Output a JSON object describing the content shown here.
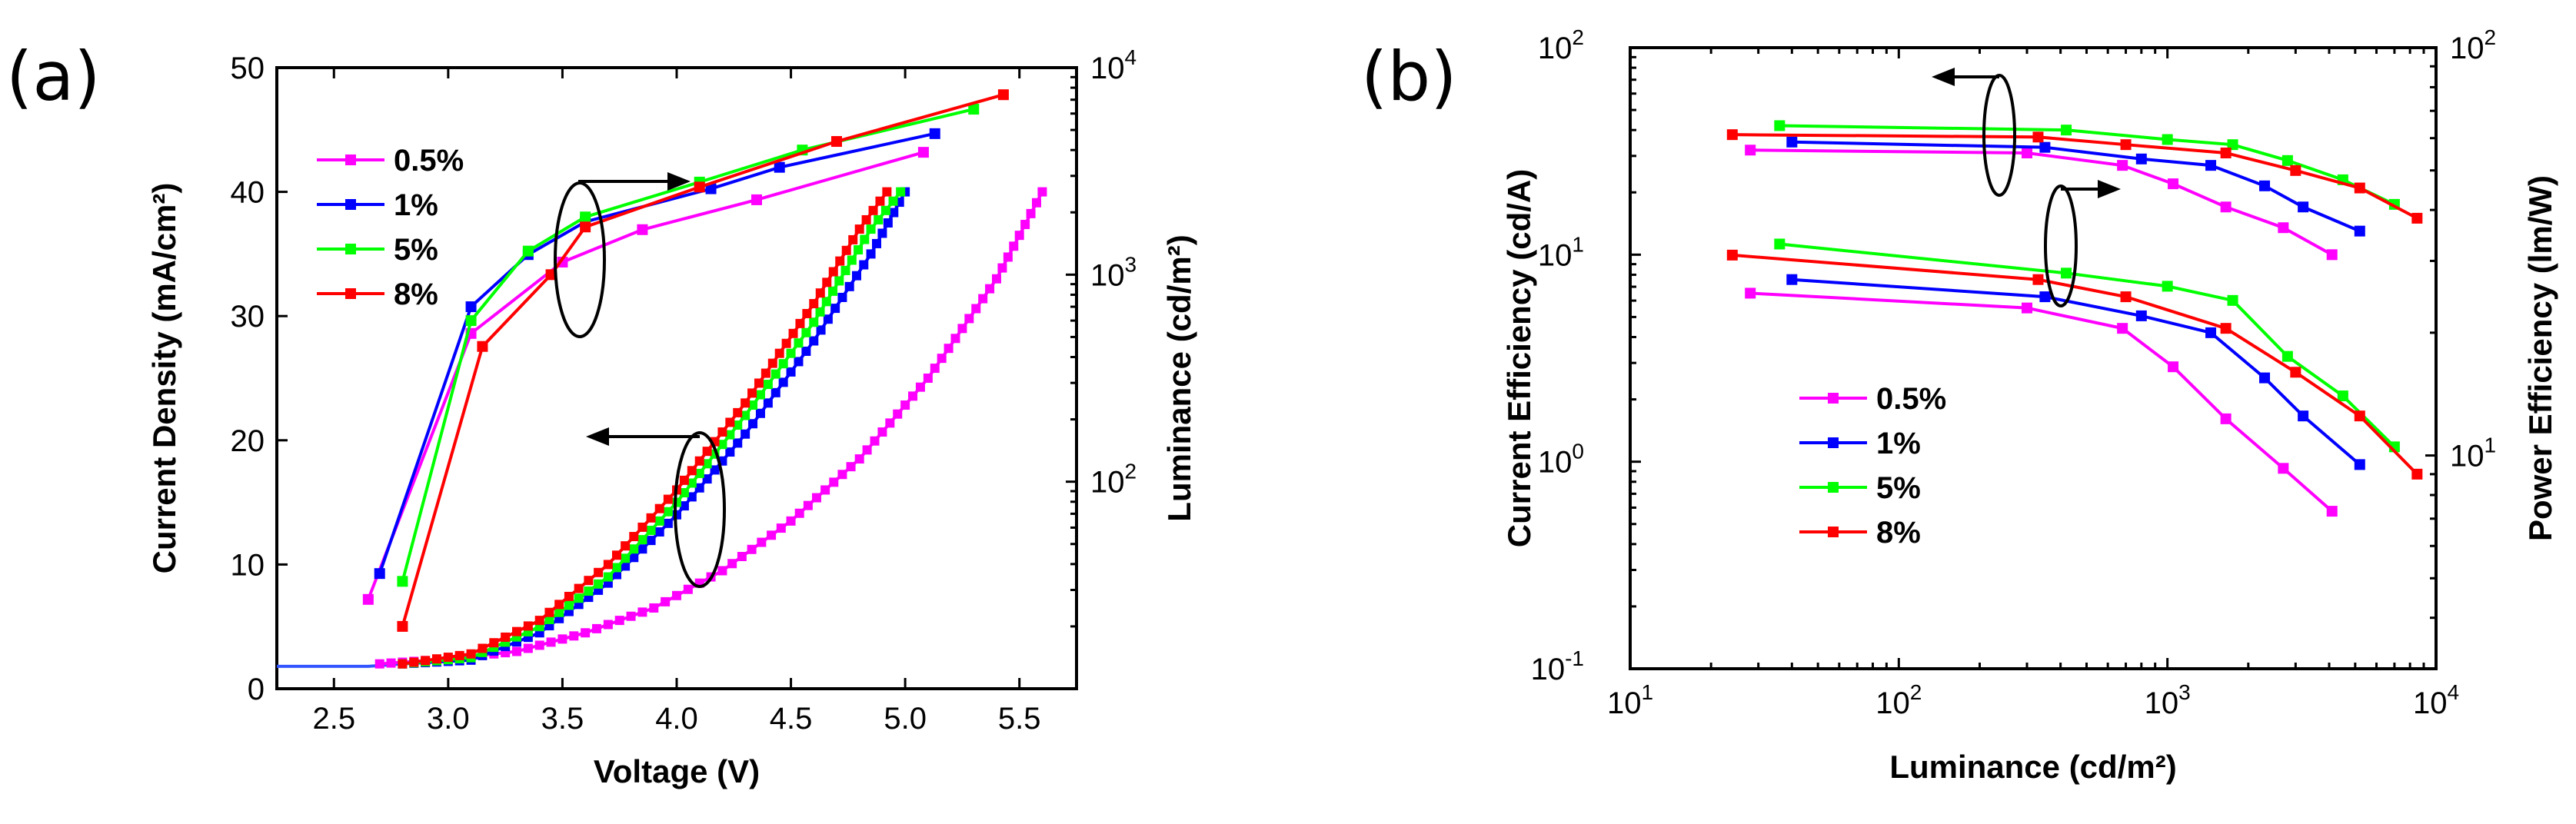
{
  "colors": {
    "0.5%": "#ff00ff",
    "1%": "#0000ff",
    "5%": "#00ff00",
    "8%": "#ff0000"
  },
  "chart_data": [
    {
      "panel_label": "(a)",
      "type": "line",
      "xlabel": "Voltage (V)",
      "ylabel_left": "Current Density (mA/cm²)",
      "ylabel_right": "Luminance (cd/m²)",
      "xlim": [
        2.25,
        5.75
      ],
      "ylim_left": [
        0,
        50
      ],
      "ylim_right": [
        10,
        10000
      ],
      "xticks": [
        "2.5",
        "3.0",
        "3.5",
        "4.0",
        "4.5",
        "5.0",
        "5.5"
      ],
      "yticks_left": [
        "0",
        "10",
        "20",
        "30",
        "40",
        "50"
      ],
      "yticks_right": [
        {
          "b": "10",
          "e": "2"
        },
        {
          "b": "10",
          "e": "3"
        },
        {
          "b": "10",
          "e": "4"
        }
      ],
      "legend": [
        "0.5%",
        "1%",
        "5%",
        "8%"
      ],
      "legend_position": "top-left",
      "series": [
        {
          "name": "0.5%",
          "axis": "right",
          "x": [
            2.65,
            3.1,
            3.5,
            3.85,
            4.35,
            5.08
          ],
          "y": [
            27,
            520,
            1150,
            1650,
            2300,
            3900
          ]
        },
        {
          "name": "1%",
          "axis": "right",
          "x": [
            2.7,
            3.1,
            3.35,
            3.6,
            4.15,
            4.45,
            5.13
          ],
          "y": [
            36,
            700,
            1250,
            1800,
            2600,
            3300,
            4800
          ]
        },
        {
          "name": "5%",
          "axis": "right",
          "x": [
            2.8,
            3.1,
            3.35,
            3.6,
            4.1,
            4.55,
            5.3
          ],
          "y": [
            33,
            600,
            1300,
            1900,
            2800,
            4000,
            6300
          ]
        },
        {
          "name": "8%",
          "axis": "right",
          "x": [
            2.8,
            3.15,
            3.45,
            3.6,
            4.1,
            4.7,
            5.43
          ],
          "y": [
            20,
            450,
            1000,
            1700,
            2650,
            4400,
            7400
          ]
        },
        {
          "name": "0.5% J",
          "legend": "0.5%",
          "axis": "left",
          "x": [
            2.7,
            3.0,
            3.3,
            3.6,
            3.9,
            4.2,
            4.5,
            4.8,
            5.1,
            5.4,
            5.6
          ],
          "y": [
            2.0,
            2.4,
            3.0,
            4.5,
            6.5,
            9.5,
            13.5,
            18.5,
            25,
            33,
            40
          ]
        },
        {
          "name": "1% J",
          "legend": "1%",
          "axis": "left",
          "x": [
            2.8,
            3.1,
            3.4,
            3.7,
            4.0,
            4.3,
            4.6,
            4.85,
            5.0
          ],
          "y": [
            2.0,
            2.3,
            4.5,
            8.5,
            14,
            20.5,
            28,
            35,
            40
          ]
        },
        {
          "name": "5% J",
          "legend": "5%",
          "axis": "left",
          "x": [
            2.8,
            3.1,
            3.4,
            3.7,
            4.0,
            4.3,
            4.6,
            4.85,
            4.98
          ],
          "y": [
            2.0,
            2.5,
            5.0,
            9.0,
            15,
            22,
            29.5,
            37,
            40
          ]
        },
        {
          "name": "8% J",
          "legend": "8%",
          "axis": "left",
          "x": [
            2.8,
            3.1,
            3.4,
            3.7,
            4.0,
            4.3,
            4.6,
            4.8,
            4.92
          ],
          "y": [
            2.0,
            2.8,
            5.5,
            10,
            16,
            23,
            31,
            37,
            40
          ]
        }
      ],
      "shared_baseline": {
        "x": [
          2.25,
          2.65,
          2.8
        ],
        "y": [
          1.8,
          1.8,
          2.0
        ]
      },
      "annotations": [
        {
          "type": "ellipse-arrow",
          "points_to": "right axis (Luminance)"
        },
        {
          "type": "ellipse-arrow",
          "points_to": "left axis (Current Density)"
        }
      ]
    },
    {
      "panel_label": "(b)",
      "type": "line",
      "xscale": "log",
      "yscale": "log",
      "xlabel": "Luminance (cd/m²)",
      "ylabel_left": "Current Efficiency (cd/A)",
      "ylabel_right": "Power Efficiency (lm/W)",
      "xlim": [
        10,
        10000
      ],
      "ylim_left": [
        0.1,
        100
      ],
      "ylim_right": [
        3,
        100
      ],
      "xticks": [
        {
          "b": "10",
          "e": "1"
        },
        {
          "b": "10",
          "e": "2"
        },
        {
          "b": "10",
          "e": "3"
        },
        {
          "b": "10",
          "e": "4"
        }
      ],
      "yticks_left": [
        {
          "b": "10",
          "e": "-1"
        },
        {
          "b": "10",
          "e": "0"
        },
        {
          "b": "10",
          "e": "1"
        },
        {
          "b": "10",
          "e": "2"
        }
      ],
      "yticks_right": [
        {
          "b": "10",
          "e": "1"
        },
        {
          "b": "10",
          "e": "2"
        }
      ],
      "legend": [
        "0.5%",
        "1%",
        "5%",
        "8%"
      ],
      "legend_position": "bottom-left",
      "series": [
        {
          "name": "0.5% CE",
          "legend": "0.5%",
          "axis": "left",
          "x": [
            28,
            300,
            680,
            1050,
            1650,
            2700,
            4100
          ],
          "y": [
            32,
            31,
            27,
            22,
            17,
            13.5,
            10
          ]
        },
        {
          "name": "1% CE",
          "legend": "1%",
          "axis": "left",
          "x": [
            40,
            350,
            800,
            1450,
            2300,
            3200,
            5200
          ],
          "y": [
            35,
            33,
            29,
            27,
            21.5,
            17,
            13
          ]
        },
        {
          "name": "5% CE",
          "legend": "5%",
          "axis": "left",
          "x": [
            36,
            420,
            1000,
            1750,
            2800,
            4500,
            7000
          ],
          "y": [
            42,
            40,
            36,
            34,
            28.5,
            23,
            17.5
          ]
        },
        {
          "name": "8% CE",
          "legend": "8%",
          "axis": "left",
          "x": [
            24,
            330,
            700,
            1650,
            3000,
            5200,
            8500
          ],
          "y": [
            38,
            37,
            34,
            31,
            25.5,
            21,
            15
          ]
        },
        {
          "name": "0.5% PE",
          "legend": "0.5%",
          "axis": "right",
          "x": [
            28,
            300,
            680,
            1050,
            1650,
            2700,
            4100
          ],
          "y": [
            25,
            23,
            20.5,
            16.5,
            12.3,
            9.3,
            7.3
          ]
        },
        {
          "name": "1% PE",
          "legend": "1%",
          "axis": "right",
          "x": [
            40,
            350,
            800,
            1450,
            2300,
            3200,
            5200
          ],
          "y": [
            27,
            24.5,
            22,
            20,
            15.5,
            12.5,
            9.5
          ]
        },
        {
          "name": "5% PE",
          "legend": "5%",
          "axis": "right",
          "x": [
            36,
            420,
            1000,
            1750,
            2800,
            4500,
            7000
          ],
          "y": [
            33,
            28,
            26,
            24,
            17.5,
            14,
            10.5
          ]
        },
        {
          "name": "8% PE",
          "legend": "8%",
          "axis": "right",
          "x": [
            24,
            330,
            700,
            1650,
            3000,
            5200,
            8500
          ],
          "y": [
            31,
            27,
            24.5,
            20.5,
            16,
            12.5,
            9
          ]
        }
      ],
      "annotations": [
        {
          "type": "ellipse-arrow",
          "points_to": "left axis (Current Efficiency)"
        },
        {
          "type": "ellipse-arrow",
          "points_to": "right axis (Power Efficiency)"
        }
      ]
    }
  ]
}
